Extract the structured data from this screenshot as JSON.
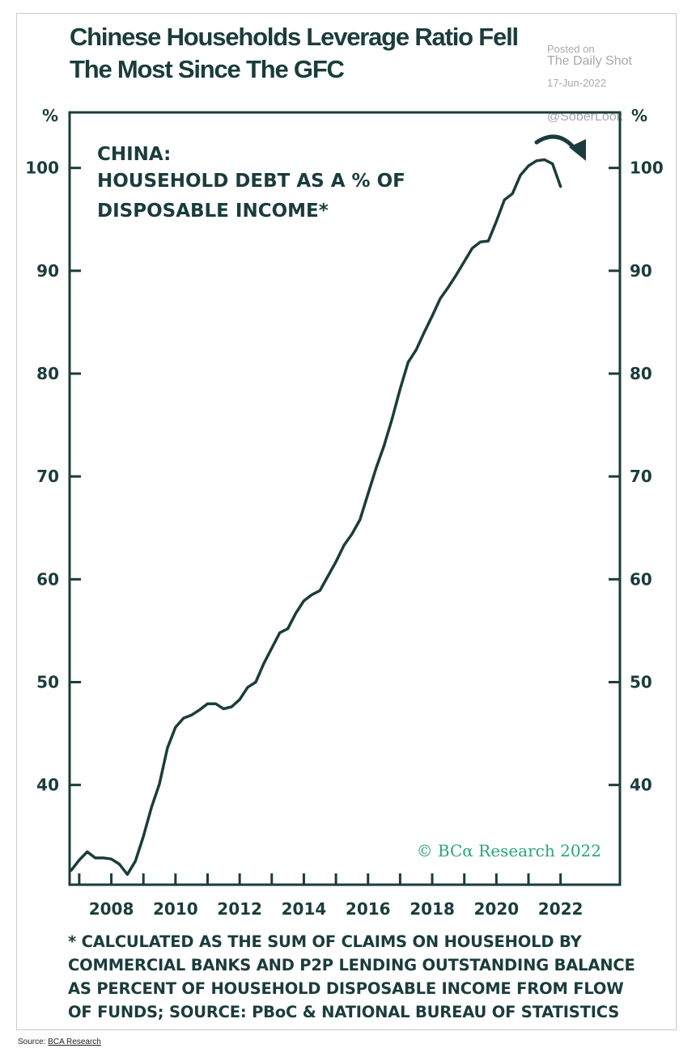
{
  "title_lines": [
    "Chinese Households Leverage Ratio Fell",
    "The Most Since The GFC"
  ],
  "watermark": {
    "posted_on": "Posted on",
    "site": "The Daily Shot",
    "date": "17-Jun-2022",
    "handle": "@SoberLook"
  },
  "footnote_lines": [
    "* CALCULATED AS THE SUM OF CLAIMS ON HOUSEHOLD BY",
    "COMMERCIAL BANKS AND P2P LENDING OUTSTANDING BALANCE",
    "AS PERCENT OF HOUSEHOLD DISPOSABLE INCOME FROM FLOW",
    "OF FUNDS; SOURCE: PBoC & NATIONAL BUREAU OF STATISTICS"
  ],
  "source": {
    "prefix": "Source: ",
    "link": "BCA Research"
  },
  "colors": {
    "ink": "#1b3c3c",
    "copyright": "#2aa37a"
  },
  "chart_data": {
    "type": "line",
    "title": "CHINA:",
    "subtitle_lines": [
      "HOUSEHOLD DEBT AS A % OF",
      "DISPOSABLE INCOME*"
    ],
    "ylabel_left": "%",
    "ylabel_right": "%",
    "xlabel": "",
    "xlim": [
      2006.7,
      2023.85
    ],
    "ylim": [
      30.3,
      105.4
    ],
    "x_ticks": [
      2008,
      2010,
      2012,
      2014,
      2016,
      2018,
      2020,
      2022
    ],
    "x_tick_labels": [
      "2008",
      "2010",
      "2012",
      "2014",
      "2016",
      "2018",
      "2020",
      "2022"
    ],
    "x_tick_marks": [
      2007,
      2008,
      2009,
      2010,
      2011,
      2012,
      2013,
      2014,
      2015,
      2016,
      2017,
      2018,
      2019,
      2020,
      2021,
      2022
    ],
    "y_ticks": [
      40,
      50,
      60,
      70,
      80,
      90,
      100
    ],
    "y_tick_labels": [
      "40",
      "50",
      "60",
      "70",
      "80",
      "90",
      "100"
    ],
    "grid": false,
    "copyright": "© BCα Research 2022",
    "annotation": "curved downward arrow at 2021 peak",
    "series": [
      {
        "name": "Household debt as % of disposable income",
        "x": [
          2006.75,
          2007.0,
          2007.25,
          2007.5,
          2007.75,
          2008.0,
          2008.25,
          2008.5,
          2008.75,
          2009.0,
          2009.25,
          2009.5,
          2009.75,
          2010.0,
          2010.25,
          2010.5,
          2010.75,
          2011.0,
          2011.25,
          2011.5,
          2011.75,
          2012.0,
          2012.25,
          2012.5,
          2012.75,
          2013.0,
          2013.25,
          2013.5,
          2013.75,
          2014.0,
          2014.25,
          2014.5,
          2014.75,
          2015.0,
          2015.25,
          2015.5,
          2015.75,
          2016.0,
          2016.25,
          2016.5,
          2016.75,
          2017.0,
          2017.25,
          2017.5,
          2017.75,
          2018.0,
          2018.25,
          2018.5,
          2018.75,
          2019.0,
          2019.25,
          2019.5,
          2019.75,
          2020.0,
          2020.25,
          2020.5,
          2020.75,
          2021.0,
          2021.25,
          2021.5,
          2021.75,
          2022.0
        ],
        "values": [
          31.7,
          32.7,
          33.5,
          32.9,
          32.9,
          32.8,
          32.3,
          31.3,
          32.6,
          35.0,
          37.8,
          40.1,
          43.6,
          45.6,
          46.5,
          46.8,
          47.3,
          47.9,
          47.9,
          47.4,
          47.6,
          48.3,
          49.5,
          50.0,
          51.8,
          53.3,
          54.8,
          55.2,
          56.7,
          57.9,
          58.5,
          58.9,
          60.3,
          61.7,
          63.3,
          64.4,
          65.8,
          68.3,
          70.8,
          73.0,
          75.6,
          78.5,
          81.1,
          82.3,
          84.0,
          85.6,
          87.3,
          88.4,
          89.6,
          90.9,
          92.2,
          92.8,
          92.9,
          94.8,
          96.9,
          97.5,
          99.3,
          100.2,
          100.7,
          100.8,
          100.4,
          98.2
        ]
      }
    ]
  }
}
